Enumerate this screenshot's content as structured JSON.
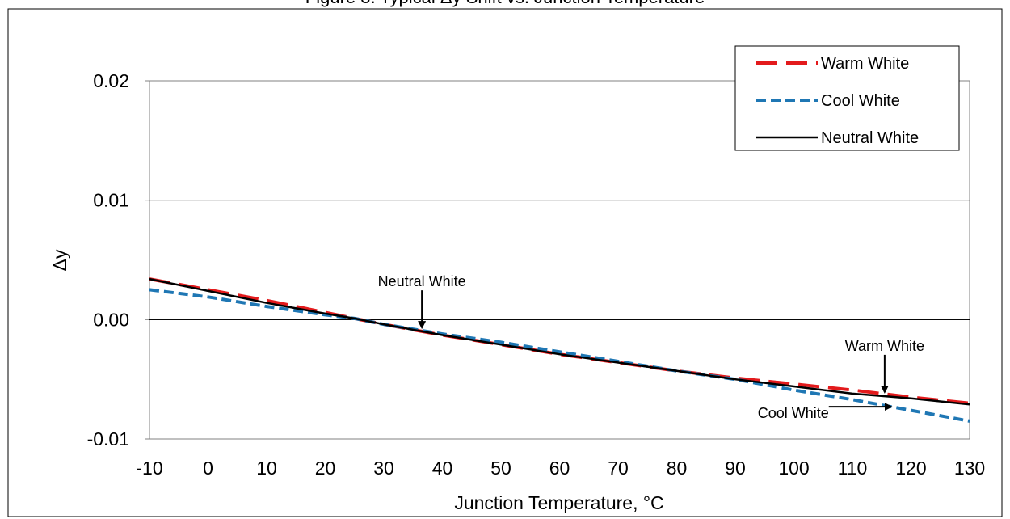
{
  "chart_data": {
    "type": "line",
    "title": "Figure 3. Typical Δy Shift vs. Junction Temperature",
    "xlabel": "Junction Temperature, °C",
    "ylabel": "Δy",
    "xlim": [
      -10,
      130
    ],
    "ylim": [
      -0.01,
      0.02
    ],
    "x_ticks": [
      "-10",
      "0",
      "10",
      "20",
      "30",
      "40",
      "50",
      "60",
      "70",
      "80",
      "90",
      "100",
      "110",
      "120",
      "130"
    ],
    "y_ticks": [
      "-0.01",
      "0.00",
      "0.01",
      "0.02"
    ],
    "grid": "horizontal major gridlines",
    "legend_position": "top-right",
    "series": [
      {
        "name": "Warm White",
        "color": "#e31a1c",
        "dash": "long-dash",
        "x": [
          -10,
          0,
          10,
          20,
          25,
          30,
          40,
          50,
          60,
          70,
          80,
          90,
          100,
          110,
          120,
          130
        ],
        "y": [
          0.0034,
          0.0025,
          0.0016,
          0.0006,
          0.0001,
          -0.0004,
          -0.0013,
          -0.0021,
          -0.0029,
          -0.0036,
          -0.0043,
          -0.0049,
          -0.0054,
          -0.0059,
          -0.0065,
          -0.007
        ]
      },
      {
        "name": "Cool White",
        "color": "#1f77b4",
        "dash": "short-dash",
        "x": [
          -10,
          0,
          10,
          20,
          25,
          30,
          40,
          50,
          60,
          70,
          80,
          90,
          100,
          110,
          120,
          130
        ],
        "y": [
          0.0025,
          0.0019,
          0.0011,
          0.0004,
          0.0001,
          -0.0004,
          -0.0012,
          -0.0019,
          -0.0027,
          -0.0035,
          -0.0043,
          -0.005,
          -0.0059,
          -0.0067,
          -0.0076,
          -0.0085
        ]
      },
      {
        "name": "Neutral White",
        "color": "#000000",
        "dash": "solid",
        "x": [
          -10,
          0,
          10,
          20,
          25,
          30,
          40,
          50,
          60,
          70,
          80,
          90,
          100,
          110,
          120,
          130
        ],
        "y": [
          0.0034,
          0.0024,
          0.0014,
          0.0005,
          0.0001,
          -0.0004,
          -0.0013,
          -0.0021,
          -0.0029,
          -0.0036,
          -0.0043,
          -0.005,
          -0.0056,
          -0.0062,
          -0.0066,
          -0.0071
        ]
      }
    ],
    "annotations": [
      {
        "text": "Neutral White",
        "arrow_to": [
          36.5,
          -0.0008
        ],
        "arrow_dir": "down"
      },
      {
        "text": "Warm White",
        "arrow_to": [
          115.5,
          -0.0062
        ],
        "arrow_dir": "down"
      },
      {
        "text": "Cool White",
        "arrow_to": [
          117,
          -0.0073
        ],
        "arrow_dir": "right"
      }
    ]
  }
}
